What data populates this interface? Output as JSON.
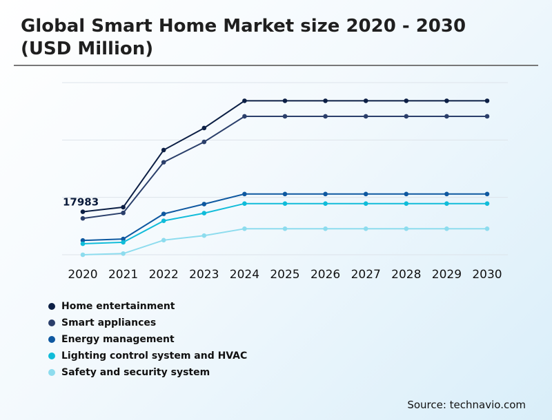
{
  "header": {
    "title": "Global Smart Home Market size 2020 - 2030 (USD Million)"
  },
  "source": "Source: technavio.com",
  "colors": {
    "home_entertainment": "#0c1f45",
    "smart_appliances": "#2b3f6b",
    "energy_management": "#0e58a0",
    "lighting_hvac": "#10bcd9",
    "safety_security": "#8ddcee"
  },
  "chart_data": {
    "type": "line",
    "title": "Global Smart Home Market size 2020 - 2030 (USD Million)",
    "xlabel": "",
    "ylabel": "",
    "ylim": [
      0,
      72000
    ],
    "grid": true,
    "legend_position": "bottom-left",
    "categories": [
      "2020",
      "2021",
      "2022",
      "2023",
      "2024",
      "2025",
      "2026",
      "2027",
      "2028",
      "2029",
      "2030"
    ],
    "series": [
      {
        "name": "Home entertainment",
        "color": "#0c1f45",
        "values": [
          17983,
          19900,
          43800,
          53000,
          64400,
          64400,
          64400,
          64400,
          64400,
          64400,
          64400
        ]
      },
      {
        "name": "Smart appliances",
        "color": "#2b3f6b",
        "values": [
          15200,
          17500,
          38700,
          47200,
          57900,
          57900,
          57900,
          57900,
          57900,
          57900,
          57900
        ]
      },
      {
        "name": "Energy management",
        "color": "#0e58a0",
        "values": [
          6000,
          6600,
          17100,
          21200,
          25400,
          25400,
          25400,
          25400,
          25400,
          25400,
          25400
        ]
      },
      {
        "name": "Lighting control system and HVAC",
        "color": "#10bcd9",
        "values": [
          4600,
          5200,
          14200,
          17400,
          21400,
          21400,
          21400,
          21400,
          21400,
          21400,
          21400
        ]
      },
      {
        "name": "Safety and security system",
        "color": "#8ddcee",
        "values": [
          0,
          500,
          6100,
          8000,
          10900,
          10900,
          10900,
          10900,
          10900,
          10900,
          10900
        ]
      }
    ],
    "annotations": [
      {
        "series": "Home entertainment",
        "category": "2020",
        "text": "17983"
      }
    ]
  }
}
